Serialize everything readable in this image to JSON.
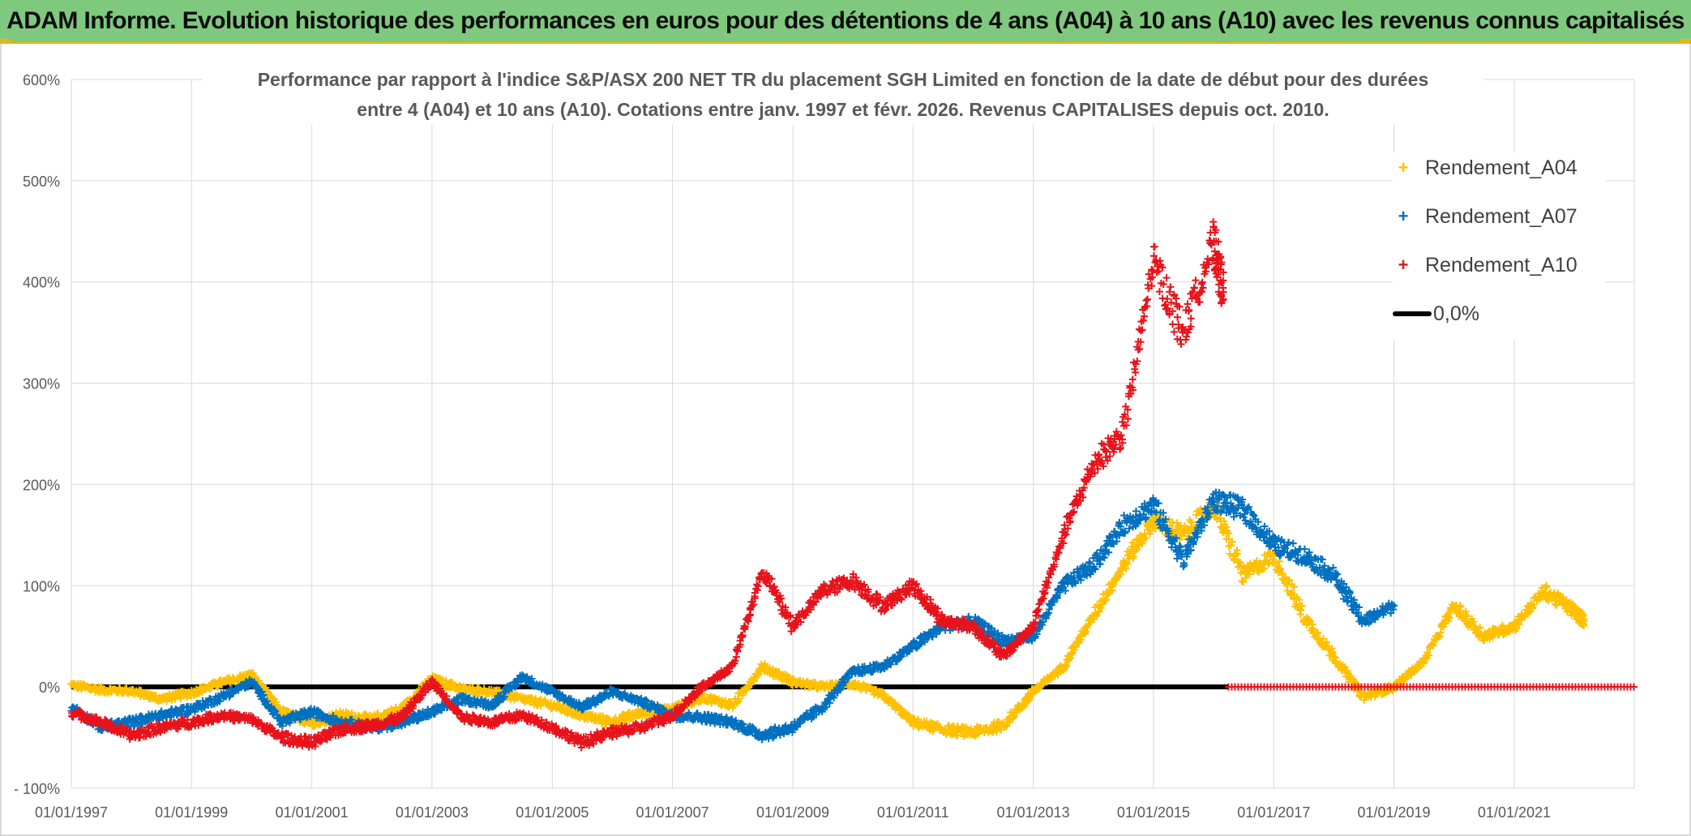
{
  "banner": {
    "title": "ADAM Informe. Evolution historique des performances en euros pour des détentions de 4 ans (A04) à 10 ans (A10) avec les revenus connus capitalisés"
  },
  "chart_data": {
    "type": "scatter",
    "title_line1": "Performance par rapport à l'indice S&P/ASX 200 NET TR  du placement SGH Limited en fonction de la date de début pour des durées",
    "title_line2": "entre 4 (A04) et 10 ans (A10). Cotations entre janv. 1997 et févr. 2026. Revenus CAPITALISES depuis oct. 2010.",
    "xlim": [
      "1997-01-01",
      "2022-12-31"
    ],
    "ylim": [
      -100,
      600
    ],
    "y_tick_labels": [
      "- 100%",
      "0%",
      "100%",
      "200%",
      "300%",
      "400%",
      "500%",
      "600%"
    ],
    "y_ticks": [
      -100,
      0,
      100,
      200,
      300,
      400,
      500,
      600
    ],
    "x_tick_labels": [
      "01/01/1997",
      "01/01/1999",
      "01/01/2001",
      "01/01/2003",
      "01/01/2005",
      "01/01/2007",
      "01/01/2009",
      "01/01/2011",
      "01/01/2013",
      "01/01/2015",
      "01/01/2017",
      "01/01/2019",
      "01/01/2021"
    ],
    "x_ticks": [
      "1997-01-01",
      "1999-01-01",
      "2001-01-01",
      "2003-01-01",
      "2005-01-01",
      "2007-01-01",
      "2009-01-01",
      "2011-01-01",
      "2013-01-01",
      "2015-01-01",
      "2017-01-01",
      "2019-01-01",
      "2021-01-01"
    ],
    "grid": true,
    "legend_position": "top-right",
    "reference_line": {
      "label": "0,0%",
      "y": 0,
      "color": "#000000"
    },
    "series": [
      {
        "name": "Rendement_A04",
        "color": "#ffc000",
        "points": [
          [
            "1997-01-01",
            2
          ],
          [
            "1997-07-01",
            -3
          ],
          [
            "1998-01-01",
            -4
          ],
          [
            "1998-07-01",
            -12
          ],
          [
            "1999-01-01",
            -6
          ],
          [
            "1999-07-01",
            4
          ],
          [
            "2000-01-01",
            12
          ],
          [
            "2000-07-01",
            -25
          ],
          [
            "2001-01-01",
            -35
          ],
          [
            "2001-07-01",
            -28
          ],
          [
            "2002-01-01",
            -32
          ],
          [
            "2002-07-01",
            -22
          ],
          [
            "2003-01-01",
            8
          ],
          [
            "2003-07-01",
            -2
          ],
          [
            "2004-01-01",
            -5
          ],
          [
            "2004-07-01",
            -12
          ],
          [
            "2005-01-01",
            -18
          ],
          [
            "2005-07-01",
            -28
          ],
          [
            "2006-01-01",
            -35
          ],
          [
            "2006-07-01",
            -25
          ],
          [
            "2007-01-01",
            -22
          ],
          [
            "2007-07-01",
            -10
          ],
          [
            "2008-01-01",
            -18
          ],
          [
            "2008-07-01",
            20
          ],
          [
            "2009-01-01",
            5
          ],
          [
            "2009-07-01",
            0
          ],
          [
            "2010-01-01",
            3
          ],
          [
            "2010-07-01",
            -8
          ],
          [
            "2011-01-01",
            -35
          ],
          [
            "2011-07-01",
            -42
          ],
          [
            "2012-01-01",
            -45
          ],
          [
            "2012-07-01",
            -38
          ],
          [
            "2013-01-01",
            -5
          ],
          [
            "2013-07-01",
            20
          ],
          [
            "2014-01-01",
            70
          ],
          [
            "2014-07-01",
            120
          ],
          [
            "2015-01-01",
            165
          ],
          [
            "2015-07-01",
            150
          ],
          [
            "2016-01-01",
            180
          ],
          [
            "2016-07-01",
            110
          ],
          [
            "2017-01-01",
            130
          ],
          [
            "2017-07-01",
            70
          ],
          [
            "2018-01-01",
            30
          ],
          [
            "2018-07-01",
            -10
          ],
          [
            "2019-01-01",
            0
          ],
          [
            "2019-07-01",
            25
          ],
          [
            "2020-01-01",
            80
          ],
          [
            "2020-07-01",
            50
          ],
          [
            "2021-01-01",
            60
          ],
          [
            "2021-07-01",
            95
          ],
          [
            "2022-01-01",
            75
          ],
          [
            "2022-03-01",
            65
          ]
        ]
      },
      {
        "name": "Rendement_A07",
        "color": "#0070c0",
        "points": [
          [
            "1997-01-01",
            -20
          ],
          [
            "1997-07-01",
            -40
          ],
          [
            "1998-01-01",
            -35
          ],
          [
            "1998-07-01",
            -28
          ],
          [
            "1999-01-01",
            -22
          ],
          [
            "1999-07-01",
            -10
          ],
          [
            "2000-01-01",
            5
          ],
          [
            "2000-07-01",
            -35
          ],
          [
            "2001-01-01",
            -25
          ],
          [
            "2001-07-01",
            -35
          ],
          [
            "2002-01-01",
            -40
          ],
          [
            "2002-07-01",
            -35
          ],
          [
            "2003-01-01",
            -25
          ],
          [
            "2003-07-01",
            -12
          ],
          [
            "2004-01-01",
            -18
          ],
          [
            "2004-07-01",
            10
          ],
          [
            "2005-01-01",
            -5
          ],
          [
            "2005-07-01",
            -20
          ],
          [
            "2006-01-01",
            -5
          ],
          [
            "2006-07-01",
            -15
          ],
          [
            "2007-01-01",
            -28
          ],
          [
            "2007-07-01",
            -30
          ],
          [
            "2008-01-01",
            -35
          ],
          [
            "2008-07-01",
            -48
          ],
          [
            "2009-01-01",
            -40
          ],
          [
            "2009-07-01",
            -20
          ],
          [
            "2010-01-01",
            15
          ],
          [
            "2010-07-01",
            20
          ],
          [
            "2011-01-01",
            40
          ],
          [
            "2011-07-01",
            60
          ],
          [
            "2012-01-01",
            65
          ],
          [
            "2012-07-01",
            45
          ],
          [
            "2013-01-01",
            50
          ],
          [
            "2013-07-01",
            100
          ],
          [
            "2014-01-01",
            120
          ],
          [
            "2014-07-01",
            160
          ],
          [
            "2015-01-01",
            180
          ],
          [
            "2015-07-01",
            125
          ],
          [
            "2016-01-01",
            185
          ],
          [
            "2016-07-01",
            175
          ],
          [
            "2017-01-01",
            140
          ],
          [
            "2017-07-01",
            130
          ],
          [
            "2018-01-01",
            110
          ],
          [
            "2018-07-01",
            65
          ],
          [
            "2019-01-01",
            80
          ]
        ]
      },
      {
        "name": "Rendement_A10",
        "color": "#e8131b",
        "points": [
          [
            "1997-01-01",
            -25
          ],
          [
            "1997-07-01",
            -35
          ],
          [
            "1998-01-01",
            -48
          ],
          [
            "1998-07-01",
            -40
          ],
          [
            "1999-01-01",
            -35
          ],
          [
            "1999-07-01",
            -28
          ],
          [
            "2000-01-01",
            -32
          ],
          [
            "2000-07-01",
            -50
          ],
          [
            "2001-01-01",
            -55
          ],
          [
            "2001-07-01",
            -42
          ],
          [
            "2002-01-01",
            -38
          ],
          [
            "2002-07-01",
            -30
          ],
          [
            "2003-01-01",
            5
          ],
          [
            "2003-07-01",
            -30
          ],
          [
            "2004-01-01",
            -35
          ],
          [
            "2004-07-01",
            -28
          ],
          [
            "2005-01-01",
            -40
          ],
          [
            "2005-07-01",
            -55
          ],
          [
            "2006-01-01",
            -45
          ],
          [
            "2006-07-01",
            -40
          ],
          [
            "2007-01-01",
            -28
          ],
          [
            "2007-07-01",
            0
          ],
          [
            "2008-01-01",
            20
          ],
          [
            "2008-07-01",
            115
          ],
          [
            "2009-01-01",
            60
          ],
          [
            "2009-07-01",
            95
          ],
          [
            "2010-01-01",
            105
          ],
          [
            "2010-07-01",
            80
          ],
          [
            "2011-01-01",
            100
          ],
          [
            "2011-07-01",
            65
          ],
          [
            "2012-01-01",
            60
          ],
          [
            "2012-07-01",
            30
          ],
          [
            "2013-01-01",
            60
          ],
          [
            "2013-07-01",
            150
          ],
          [
            "2014-01-01",
            220
          ],
          [
            "2014-07-01",
            250
          ],
          [
            "2015-01-01",
            420
          ],
          [
            "2015-07-01",
            350
          ],
          [
            "2016-01-01",
            440
          ],
          [
            "2016-03-01",
            390
          ]
        ]
      }
    ]
  }
}
